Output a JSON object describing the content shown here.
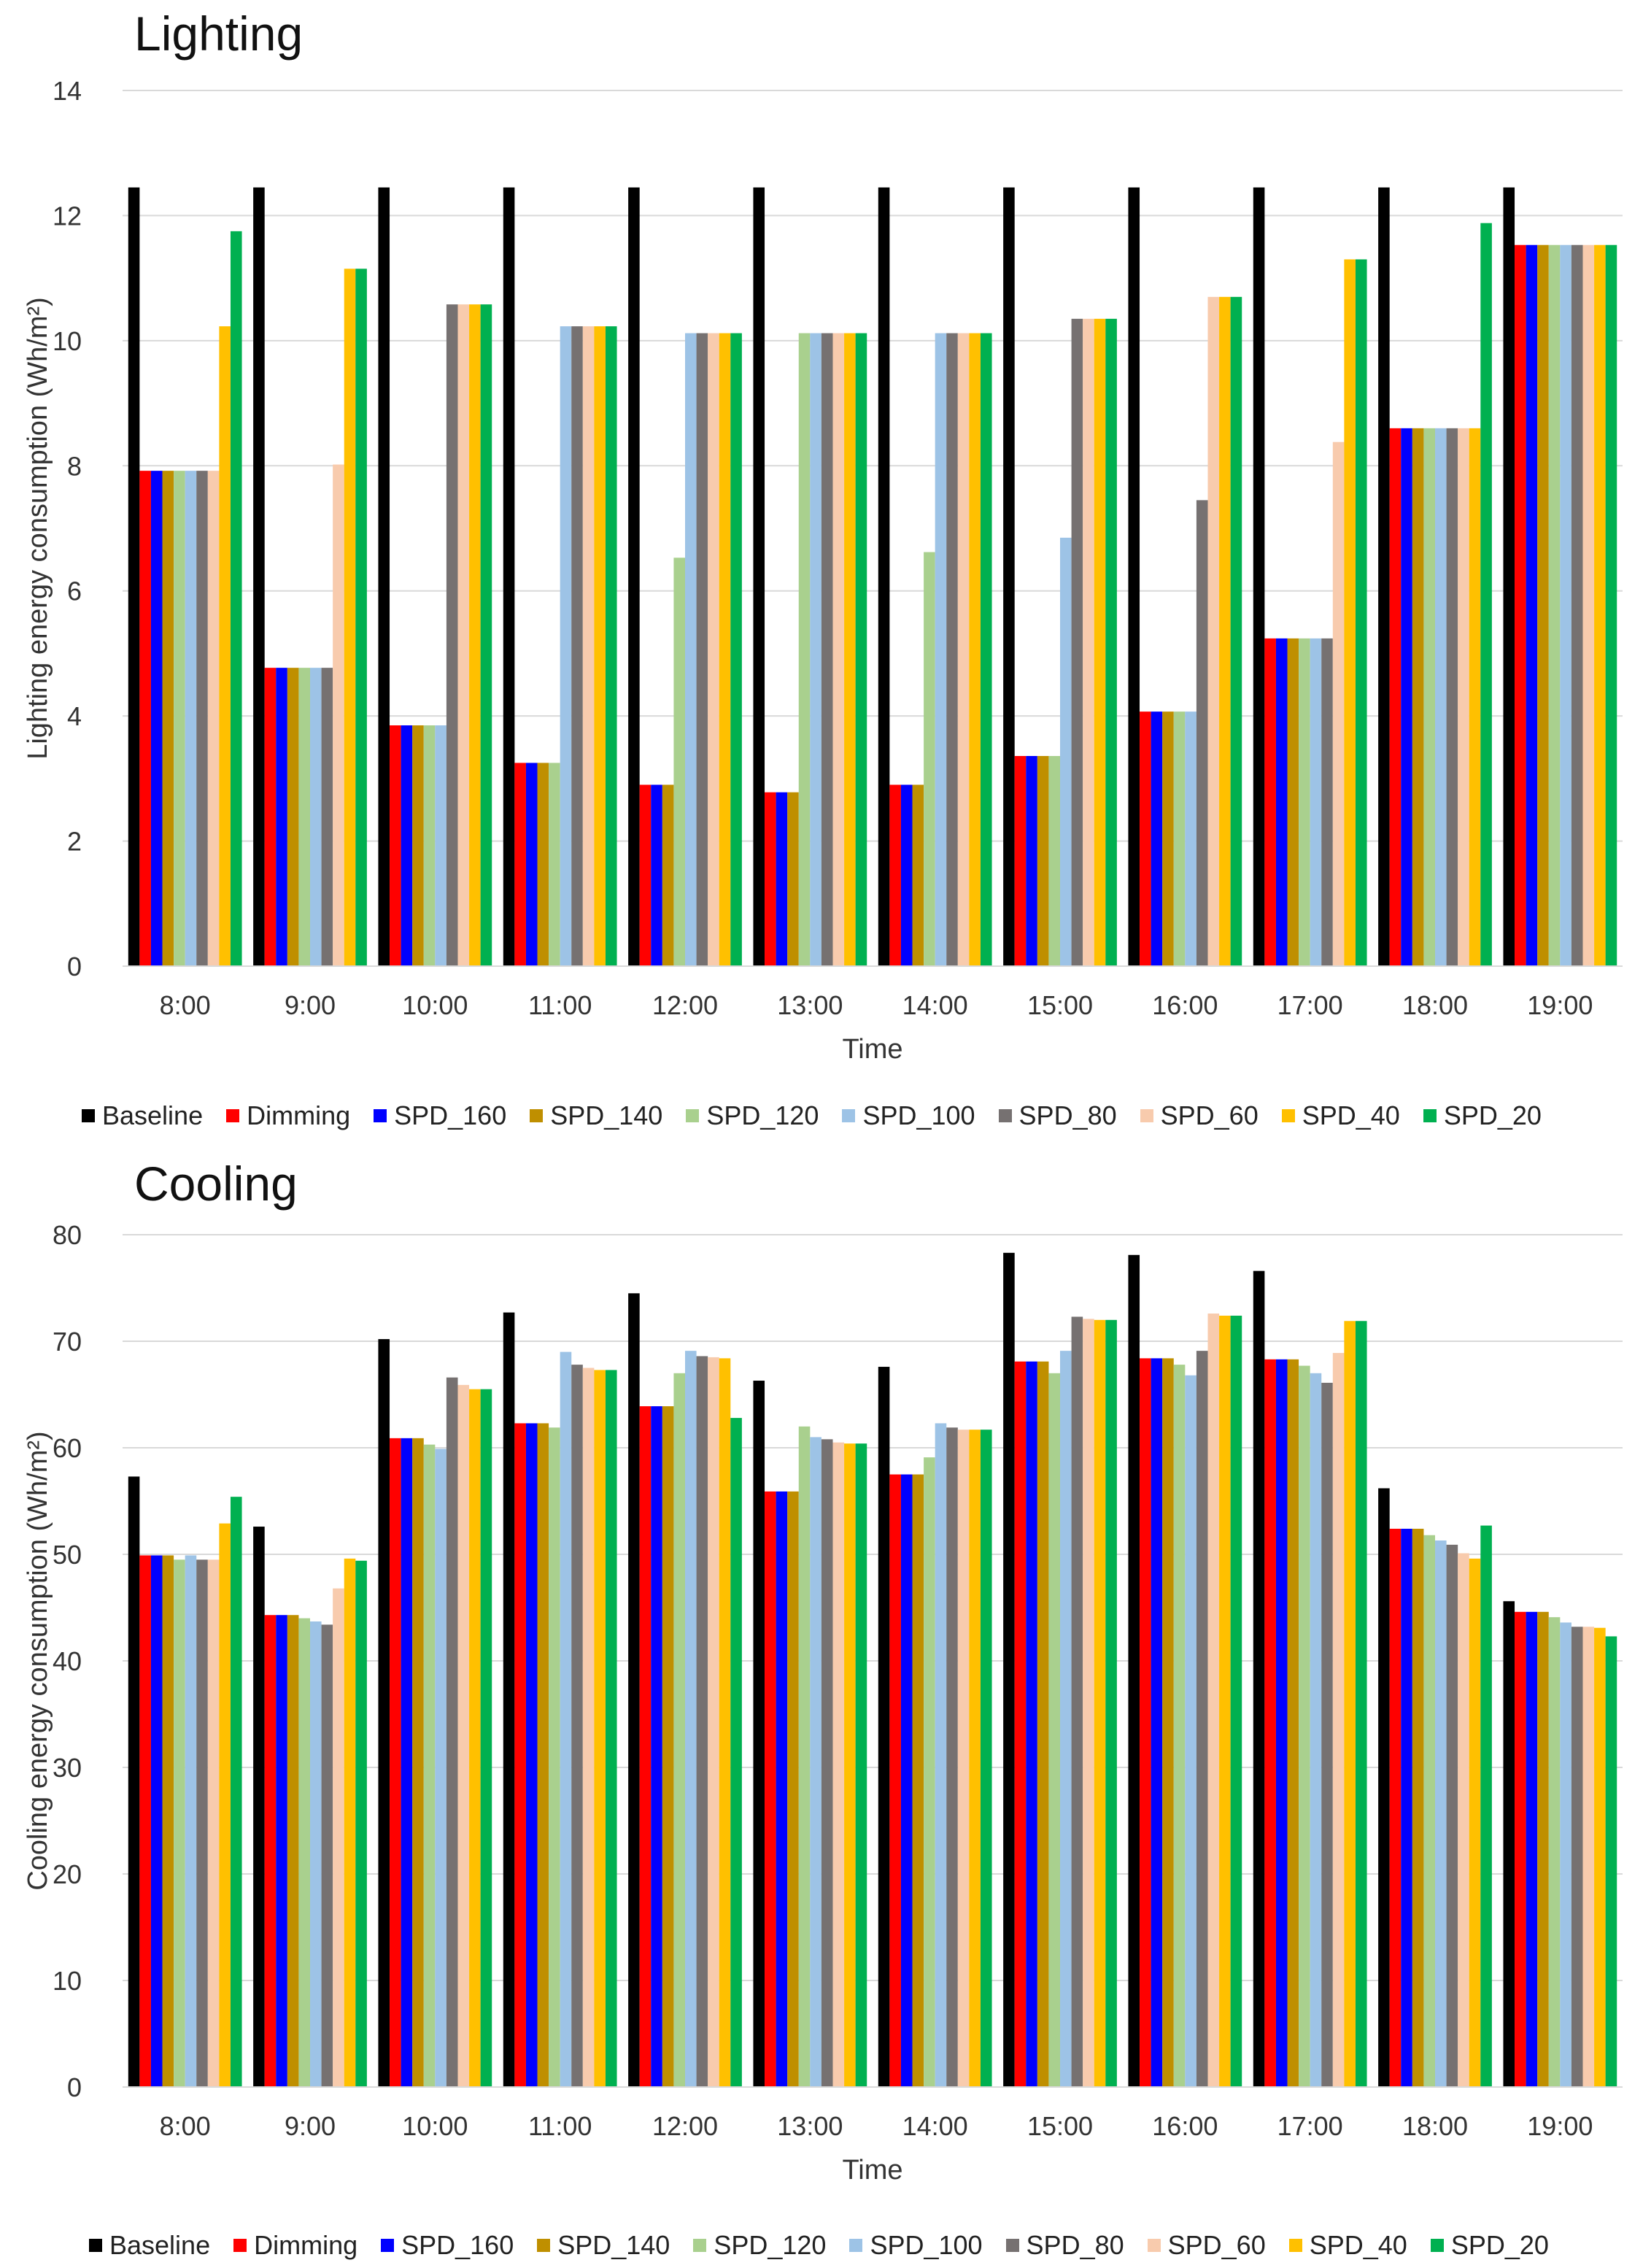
{
  "series_colors": {
    "Baseline": "#000000",
    "Dimming": "#ff0000",
    "SPD_160": "#0000ff",
    "SPD_140": "#bf8f00",
    "SPD_120": "#a9d08e",
    "SPD_100": "#9dc3e6",
    "SPD_80": "#767171",
    "SPD_60": "#f8cbad",
    "SPD_40": "#ffc000",
    "SPD_20": "#00b050"
  },
  "chart_data": [
    {
      "type": "bar",
      "title": "Lighting",
      "xlabel": "Time",
      "ylabel": "Lighting energy consumption (Wh/m²)",
      "ylim": [
        0,
        14
      ],
      "yticks": [
        "0",
        "2",
        "4",
        "6",
        "8",
        "10",
        "12",
        "14"
      ],
      "grid": true,
      "legend_position": "bottom",
      "categories": [
        "8:00",
        "9:00",
        "10:00",
        "11:00",
        "12:00",
        "13:00",
        "14:00",
        "15:00",
        "16:00",
        "17:00",
        "18:00",
        "19:00"
      ],
      "series": [
        {
          "name": "Baseline",
          "values": [
            12.45,
            12.45,
            12.45,
            12.45,
            12.45,
            12.45,
            12.45,
            12.45,
            12.45,
            12.45,
            12.45,
            12.45
          ]
        },
        {
          "name": "Dimming",
          "values": [
            7.92,
            4.77,
            3.85,
            3.25,
            2.9,
            2.78,
            2.9,
            3.36,
            4.07,
            5.24,
            8.6,
            11.53
          ]
        },
        {
          "name": "SPD_160",
          "values": [
            7.92,
            4.77,
            3.85,
            3.25,
            2.9,
            2.78,
            2.9,
            3.36,
            4.07,
            5.24,
            8.6,
            11.53
          ]
        },
        {
          "name": "SPD_140",
          "values": [
            7.92,
            4.77,
            3.85,
            3.25,
            2.9,
            2.78,
            2.9,
            3.36,
            4.07,
            5.24,
            8.6,
            11.53
          ]
        },
        {
          "name": "SPD_120",
          "values": [
            7.92,
            4.77,
            3.85,
            3.25,
            6.53,
            10.12,
            6.62,
            3.36,
            4.07,
            5.24,
            8.6,
            11.53
          ]
        },
        {
          "name": "SPD_100",
          "values": [
            7.92,
            4.77,
            3.85,
            10.23,
            10.12,
            10.12,
            10.12,
            6.85,
            4.07,
            5.24,
            8.6,
            11.53
          ]
        },
        {
          "name": "SPD_80",
          "values": [
            7.92,
            4.77,
            10.58,
            10.23,
            10.12,
            10.12,
            10.12,
            10.35,
            7.45,
            5.24,
            8.6,
            11.53
          ]
        },
        {
          "name": "SPD_60",
          "values": [
            7.92,
            8.02,
            10.58,
            10.23,
            10.12,
            10.12,
            10.12,
            10.35,
            10.7,
            8.38,
            8.6,
            11.53
          ]
        },
        {
          "name": "SPD_40",
          "values": [
            10.23,
            11.15,
            10.58,
            10.23,
            10.12,
            10.12,
            10.12,
            10.35,
            10.7,
            11.3,
            8.6,
            11.53
          ]
        },
        {
          "name": "SPD_20",
          "values": [
            11.75,
            11.15,
            10.58,
            10.23,
            10.12,
            10.12,
            10.12,
            10.35,
            10.7,
            11.3,
            11.88,
            11.53
          ]
        }
      ]
    },
    {
      "type": "bar",
      "title": "Cooling",
      "xlabel": "Time",
      "ylabel": "Cooling energy consumption (Wh/m²)",
      "ylim": [
        0,
        80
      ],
      "yticks": [
        "0",
        "10",
        "20",
        "30",
        "40",
        "50",
        "60",
        "70",
        "80"
      ],
      "grid": true,
      "legend_position": "bottom",
      "categories": [
        "8:00",
        "9:00",
        "10:00",
        "11:00",
        "12:00",
        "13:00",
        "14:00",
        "15:00",
        "16:00",
        "17:00",
        "18:00",
        "19:00"
      ],
      "series": [
        {
          "name": "Baseline",
          "values": [
            57.3,
            52.6,
            70.2,
            72.7,
            74.5,
            66.3,
            67.6,
            78.3,
            78.1,
            76.6,
            56.2,
            45.6
          ]
        },
        {
          "name": "Dimming",
          "values": [
            49.9,
            44.3,
            60.9,
            62.3,
            63.9,
            55.9,
            57.5,
            68.1,
            68.4,
            68.3,
            52.4,
            44.6
          ]
        },
        {
          "name": "SPD_160",
          "values": [
            49.9,
            44.3,
            60.9,
            62.3,
            63.9,
            55.9,
            57.5,
            68.1,
            68.4,
            68.3,
            52.4,
            44.6
          ]
        },
        {
          "name": "SPD_140",
          "values": [
            49.9,
            44.3,
            60.9,
            62.3,
            63.9,
            55.9,
            57.5,
            68.1,
            68.4,
            68.3,
            52.4,
            44.6
          ]
        },
        {
          "name": "SPD_120",
          "values": [
            49.5,
            44.0,
            60.3,
            61.9,
            67.0,
            62.0,
            59.1,
            67.0,
            67.8,
            67.7,
            51.8,
            44.1
          ]
        },
        {
          "name": "SPD_100",
          "values": [
            49.9,
            43.7,
            59.9,
            69.0,
            69.1,
            61.0,
            62.3,
            69.1,
            66.8,
            67.0,
            51.3,
            43.6
          ]
        },
        {
          "name": "SPD_80",
          "values": [
            49.5,
            43.4,
            66.6,
            67.8,
            68.6,
            60.8,
            61.9,
            72.3,
            69.1,
            66.1,
            50.9,
            43.2
          ]
        },
        {
          "name": "SPD_60",
          "values": [
            49.5,
            46.8,
            65.9,
            67.5,
            68.5,
            60.5,
            61.7,
            72.1,
            72.6,
            68.9,
            50.1,
            43.2
          ]
        },
        {
          "name": "SPD_40",
          "values": [
            52.9,
            49.6,
            65.5,
            67.3,
            68.4,
            60.4,
            61.7,
            72.0,
            72.4,
            71.9,
            49.6,
            43.1
          ]
        },
        {
          "name": "SPD_20",
          "values": [
            55.4,
            49.4,
            65.5,
            67.3,
            62.8,
            60.4,
            61.7,
            72.0,
            72.4,
            71.9,
            52.7,
            42.3
          ]
        }
      ]
    }
  ]
}
